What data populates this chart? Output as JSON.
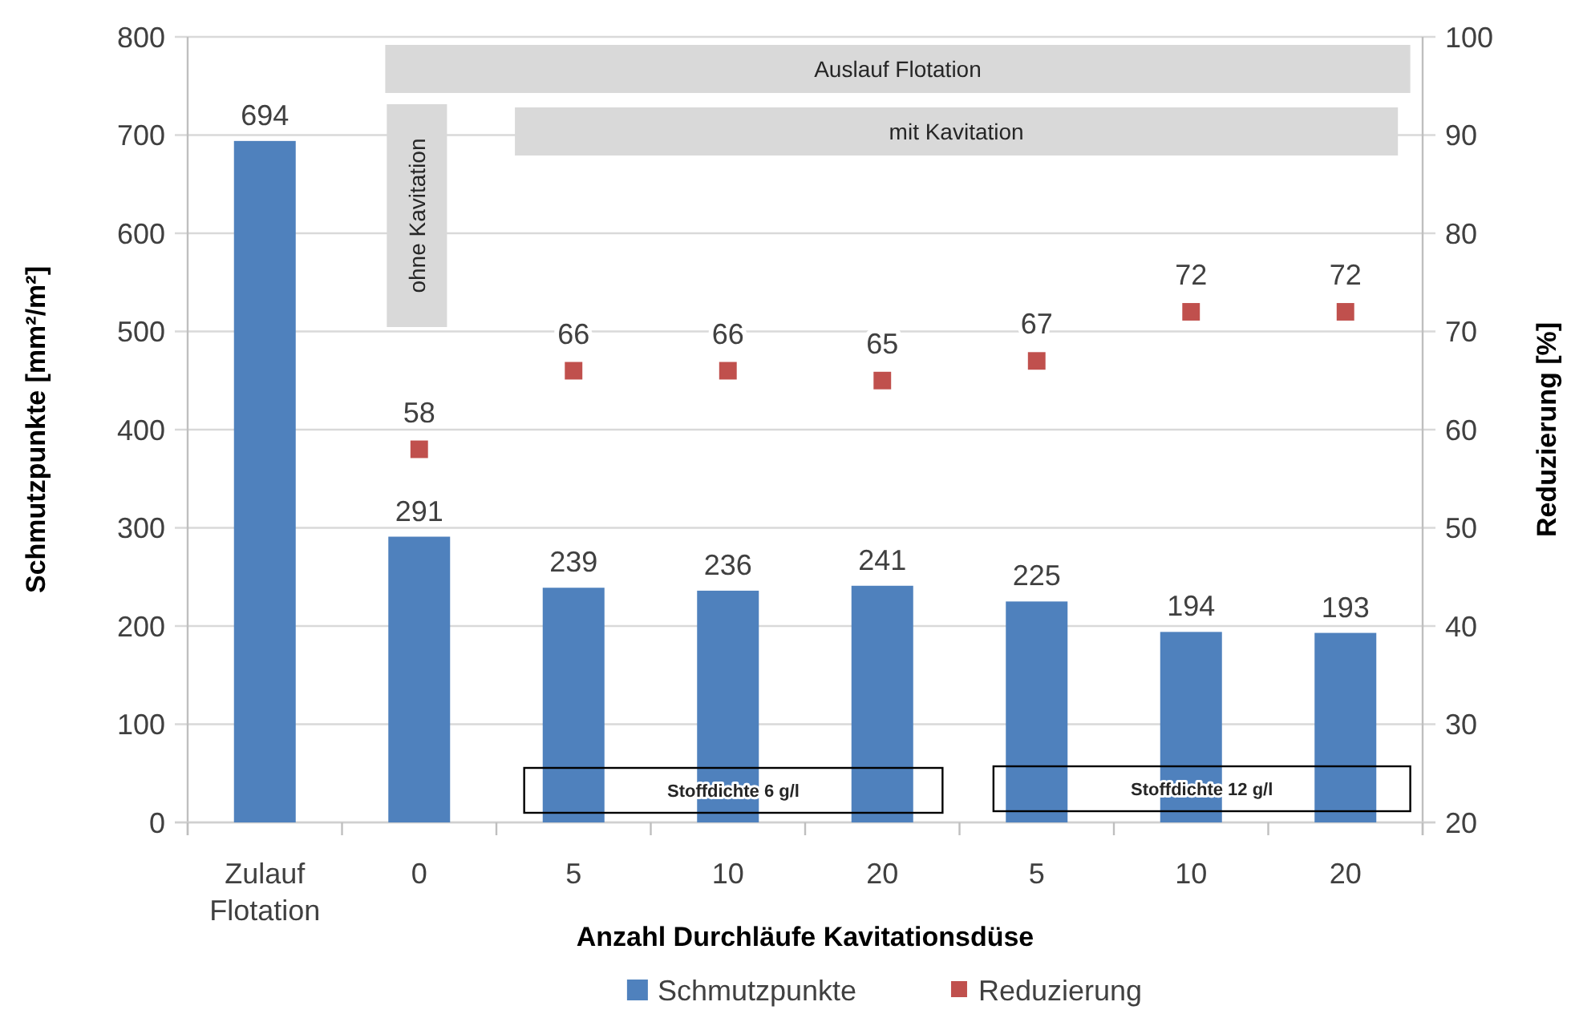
{
  "chart_data": {
    "type": "bar",
    "categories": [
      "Zulauf Flotation",
      "0",
      "5",
      "10",
      "20",
      "5",
      "10",
      "20"
    ],
    "series": [
      {
        "name": "Schmutzpunkte",
        "color": "#4f81bd",
        "values": [
          694,
          291,
          239,
          236,
          241,
          225,
          194,
          193
        ]
      },
      {
        "name": "Reduzierung",
        "type": "scatter",
        "axis": "y2",
        "color": "#c0504d",
        "values": [
          null,
          58,
          66,
          66,
          65,
          67,
          72,
          72
        ]
      }
    ],
    "xlabel": "Anzahl Durchläufe Kavitationsdüse",
    "ylabel": "Schmutzpunkte [mm²/m²]",
    "y2label": "Reduzierung [%]",
    "ylim": [
      0,
      800
    ],
    "yticks": [
      0,
      100,
      200,
      300,
      400,
      500,
      600,
      700,
      800
    ],
    "y2lim": [
      20,
      100
    ],
    "y2ticks": [
      20,
      30,
      40,
      50,
      60,
      70,
      80,
      90,
      100
    ],
    "grid": "y",
    "legend": "bottom",
    "marker": "square",
    "data_labels": true,
    "annotations": [
      "Auslauf Flotation",
      "mit Kavitation",
      "ohne Kavitation",
      "Stoffdichte 6 g/l",
      "Stoffdichte 12 g/l"
    ]
  }
}
